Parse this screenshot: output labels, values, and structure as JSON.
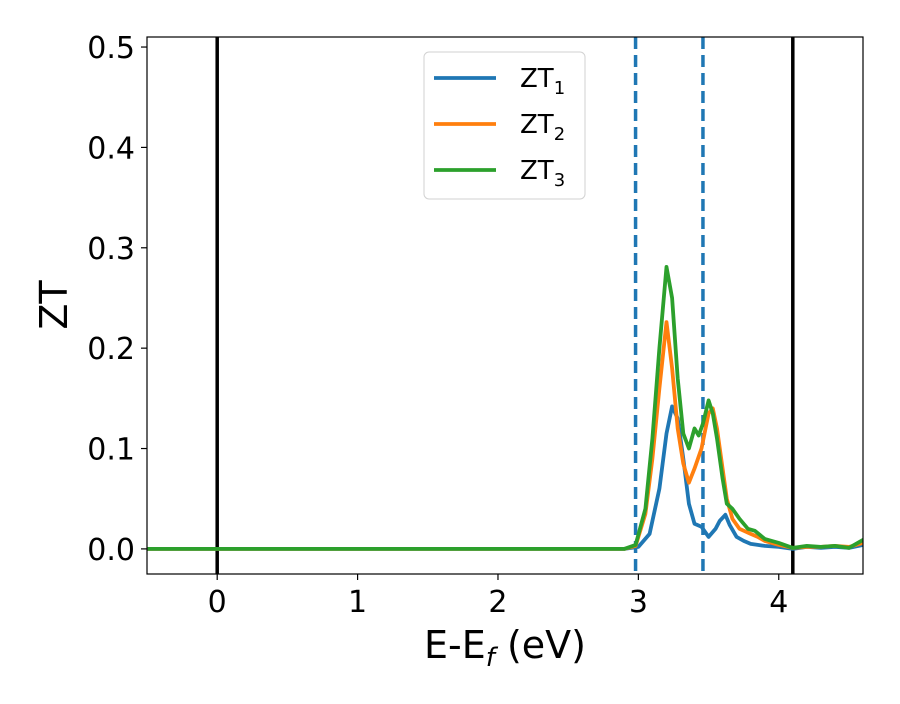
{
  "chart_data": {
    "type": "line",
    "title": "",
    "xlabel": "E-E",
    "xlabel_sub": "f",
    "xlabel_unit": " (eV)",
    "ylabel": "ZT",
    "xlim": [
      -0.5,
      4.6
    ],
    "ylim": [
      -0.025,
      0.51
    ],
    "xticks": [
      0,
      1,
      2,
      3,
      4
    ],
    "xtick_labels": [
      "0",
      "1",
      "2",
      "3",
      "4"
    ],
    "yticks": [
      0.0,
      0.1,
      0.2,
      0.3,
      0.4,
      0.5
    ],
    "ytick_labels": [
      "0.0",
      "0.1",
      "0.2",
      "0.3",
      "0.4",
      "0.5"
    ],
    "grid": false,
    "legend_position": "top-center",
    "vertical_lines": [
      {
        "x": 0.0,
        "style": "solid",
        "color": "#000000"
      },
      {
        "x": 2.98,
        "style": "dashed",
        "color": "#1f77b4"
      },
      {
        "x": 3.46,
        "style": "dashed",
        "color": "#1f77b4"
      },
      {
        "x": 4.1,
        "style": "solid",
        "color": "#000000"
      }
    ],
    "series": [
      {
        "name": "ZT",
        "name_sub": "1",
        "color": "#1f77b4",
        "x": [
          -0.5,
          2.9,
          3.0,
          3.08,
          3.15,
          3.2,
          3.24,
          3.28,
          3.32,
          3.36,
          3.4,
          3.45,
          3.5,
          3.55,
          3.58,
          3.62,
          3.65,
          3.7,
          3.75,
          3.8,
          3.85,
          3.9,
          4.0,
          4.1,
          4.15,
          4.2,
          4.3,
          4.4,
          4.5,
          4.6
        ],
        "y": [
          0.0,
          0.0,
          0.002,
          0.015,
          0.06,
          0.115,
          0.142,
          0.13,
          0.09,
          0.045,
          0.025,
          0.022,
          0.012,
          0.02,
          0.028,
          0.034,
          0.024,
          0.012,
          0.008,
          0.005,
          0.004,
          0.003,
          0.002,
          0.0,
          0.001,
          0.002,
          0.001,
          0.002,
          0.001,
          0.004
        ]
      },
      {
        "name": "ZT",
        "name_sub": "2",
        "color": "#ff7f0e",
        "x": [
          -0.5,
          2.9,
          2.98,
          3.05,
          3.1,
          3.15,
          3.2,
          3.24,
          3.28,
          3.32,
          3.36,
          3.4,
          3.45,
          3.5,
          3.53,
          3.56,
          3.6,
          3.63,
          3.67,
          3.72,
          3.8,
          3.85,
          3.9,
          4.0,
          4.1,
          4.2,
          4.3,
          4.4,
          4.5,
          4.6
        ],
        "y": [
          0.0,
          0.0,
          0.003,
          0.035,
          0.09,
          0.16,
          0.226,
          0.18,
          0.12,
          0.085,
          0.066,
          0.08,
          0.1,
          0.135,
          0.14,
          0.12,
          0.08,
          0.05,
          0.03,
          0.02,
          0.015,
          0.012,
          0.008,
          0.004,
          0.001,
          0.002,
          0.002,
          0.003,
          0.002,
          0.006
        ]
      },
      {
        "name": "ZT",
        "name_sub": "3",
        "color": "#2ca02c",
        "x": [
          -0.5,
          2.9,
          2.98,
          3.05,
          3.1,
          3.15,
          3.2,
          3.24,
          3.28,
          3.32,
          3.36,
          3.4,
          3.43,
          3.46,
          3.5,
          3.53,
          3.56,
          3.6,
          3.63,
          3.67,
          3.72,
          3.78,
          3.83,
          3.9,
          4.0,
          4.1,
          4.2,
          4.3,
          4.4,
          4.5,
          4.6
        ],
        "y": [
          0.0,
          0.0,
          0.004,
          0.04,
          0.11,
          0.2,
          0.281,
          0.25,
          0.17,
          0.115,
          0.1,
          0.12,
          0.113,
          0.125,
          0.148,
          0.135,
          0.11,
          0.07,
          0.045,
          0.04,
          0.03,
          0.02,
          0.018,
          0.01,
          0.006,
          0.001,
          0.003,
          0.002,
          0.003,
          0.001,
          0.009
        ]
      }
    ]
  }
}
